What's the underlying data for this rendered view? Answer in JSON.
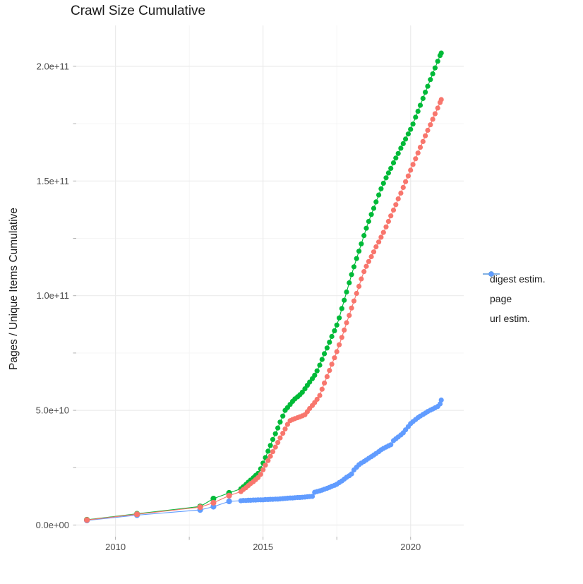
{
  "chart": {
    "title": "Crawl Size Cumulative",
    "y_axis": {
      "label": "Pages / Unique Items Cumulative",
      "tick_labels": [
        "0.0e+00",
        "5.0e+10",
        "1.0e+11",
        "1.5e+11",
        "2.0e+11"
      ],
      "tick_values_billions": [
        0,
        50,
        100,
        150,
        200
      ]
    },
    "x_axis": {
      "tick_labels": [
        "2010",
        "2015",
        "2020"
      ],
      "tick_values": [
        2010,
        2015,
        2020
      ]
    },
    "legend": {
      "items": [
        {
          "label": "digest estim.",
          "color": "#F8766D"
        },
        {
          "label": "page",
          "color": "#00BA38"
        },
        {
          "label": "url estim.",
          "color": "#619CFF"
        }
      ]
    }
  },
  "chart_data": {
    "type": "line",
    "title": "Crawl Size Cumulative",
    "xlabel": "",
    "ylabel": "Pages / Unique Items Cumulative",
    "units": "y values in billions (1e9) of pages / unique items",
    "xlim": [
      2008.67,
      2021.8
    ],
    "ylim_billions": [
      0,
      218.4
    ],
    "x_major_gridlines": [
      2010,
      2015,
      2020
    ],
    "x_minor_gridlines": [
      2012.5,
      2017.5
    ],
    "y_major_gridlines_billions": [
      0,
      50,
      100,
      150,
      200
    ],
    "y_minor_gridlines_billions": [
      25,
      75,
      125,
      175
    ],
    "grid": true,
    "legend_position": "right",
    "series": [
      {
        "name": "url estim.",
        "color": "#619CFF",
        "points": [
          [
            2009.03,
            2.0
          ],
          [
            2010.73,
            4.3
          ],
          [
            2012.87,
            6.6
          ],
          [
            2013.32,
            8.0
          ],
          [
            2013.85,
            10.3
          ],
          [
            2014.25,
            10.6
          ],
          [
            2014.33,
            10.7
          ],
          [
            2014.42,
            10.7
          ],
          [
            2014.5,
            10.8
          ],
          [
            2014.58,
            10.8
          ],
          [
            2014.67,
            10.9
          ],
          [
            2014.75,
            10.9
          ],
          [
            2014.83,
            11.0
          ],
          [
            2014.92,
            11.0
          ],
          [
            2015.0,
            11.0
          ],
          [
            2015.08,
            11.1
          ],
          [
            2015.17,
            11.1
          ],
          [
            2015.25,
            11.2
          ],
          [
            2015.33,
            11.2
          ],
          [
            2015.42,
            11.3
          ],
          [
            2015.5,
            11.3
          ],
          [
            2015.58,
            11.4
          ],
          [
            2015.67,
            11.5
          ],
          [
            2015.75,
            11.6
          ],
          [
            2015.83,
            11.7
          ],
          [
            2015.92,
            11.8
          ],
          [
            2016.0,
            11.8
          ],
          [
            2016.08,
            11.9
          ],
          [
            2016.17,
            12.0
          ],
          [
            2016.25,
            12.0
          ],
          [
            2016.33,
            12.1
          ],
          [
            2016.42,
            12.2
          ],
          [
            2016.5,
            12.3
          ],
          [
            2016.58,
            12.4
          ],
          [
            2016.67,
            12.5
          ],
          [
            2016.75,
            14.3
          ],
          [
            2016.83,
            14.6
          ],
          [
            2016.92,
            14.9
          ],
          [
            2017.0,
            15.2
          ],
          [
            2017.08,
            15.6
          ],
          [
            2017.17,
            16.0
          ],
          [
            2017.25,
            16.4
          ],
          [
            2017.33,
            16.9
          ],
          [
            2017.42,
            17.3
          ],
          [
            2017.5,
            17.8
          ],
          [
            2017.58,
            18.5
          ],
          [
            2017.67,
            19.2
          ],
          [
            2017.75,
            20.0
          ],
          [
            2017.83,
            20.8
          ],
          [
            2017.92,
            21.5
          ],
          [
            2018.0,
            22.3
          ],
          [
            2018.08,
            24.0
          ],
          [
            2018.17,
            25.2
          ],
          [
            2018.25,
            26.3
          ],
          [
            2018.33,
            27.0
          ],
          [
            2018.42,
            27.7
          ],
          [
            2018.5,
            28.4
          ],
          [
            2018.58,
            29.1
          ],
          [
            2018.67,
            29.8
          ],
          [
            2018.75,
            30.5
          ],
          [
            2018.83,
            31.2
          ],
          [
            2018.92,
            32.0
          ],
          [
            2019.0,
            32.8
          ],
          [
            2019.08,
            33.4
          ],
          [
            2019.17,
            34.0
          ],
          [
            2019.25,
            34.5
          ],
          [
            2019.33,
            35.0
          ],
          [
            2019.42,
            36.8
          ],
          [
            2019.5,
            37.6
          ],
          [
            2019.58,
            38.4
          ],
          [
            2019.67,
            39.3
          ],
          [
            2019.75,
            40.2
          ],
          [
            2019.83,
            41.5
          ],
          [
            2019.92,
            42.9
          ],
          [
            2020.0,
            44.2
          ],
          [
            2020.08,
            45.1
          ],
          [
            2020.17,
            46.0
          ],
          [
            2020.25,
            46.8
          ],
          [
            2020.33,
            47.5
          ],
          [
            2020.42,
            48.2
          ],
          [
            2020.5,
            48.8
          ],
          [
            2020.58,
            49.5
          ],
          [
            2020.67,
            50.1
          ],
          [
            2020.75,
            50.6
          ],
          [
            2020.83,
            51.1
          ],
          [
            2020.92,
            51.7
          ],
          [
            2021.0,
            52.8
          ],
          [
            2021.04,
            54.5
          ]
        ]
      },
      {
        "name": "page",
        "color": "#00BA38",
        "points": [
          [
            2009.03,
            2.3
          ],
          [
            2010.73,
            4.9
          ],
          [
            2012.87,
            8.1
          ],
          [
            2013.32,
            11.5
          ],
          [
            2013.85,
            14.0
          ],
          [
            2014.25,
            15.8
          ],
          [
            2014.33,
            16.7
          ],
          [
            2014.42,
            17.7
          ],
          [
            2014.5,
            18.7
          ],
          [
            2014.58,
            19.6
          ],
          [
            2014.67,
            20.6
          ],
          [
            2014.75,
            21.6
          ],
          [
            2014.83,
            22.5
          ],
          [
            2014.92,
            24.5
          ],
          [
            2015.0,
            27.0
          ],
          [
            2015.08,
            29.4
          ],
          [
            2015.17,
            32.2
          ],
          [
            2015.25,
            34.7
          ],
          [
            2015.33,
            37.3
          ],
          [
            2015.42,
            39.8
          ],
          [
            2015.5,
            42.3
          ],
          [
            2015.58,
            44.9
          ],
          [
            2015.67,
            47.5
          ],
          [
            2015.75,
            50.0
          ],
          [
            2015.83,
            51.2
          ],
          [
            2015.92,
            52.6
          ],
          [
            2016.0,
            53.9
          ],
          [
            2016.08,
            55.0
          ],
          [
            2016.17,
            55.9
          ],
          [
            2016.25,
            56.8
          ],
          [
            2016.33,
            57.9
          ],
          [
            2016.42,
            59.4
          ],
          [
            2016.5,
            60.9
          ],
          [
            2016.58,
            62.3
          ],
          [
            2016.67,
            63.8
          ],
          [
            2016.75,
            65.3
          ],
          [
            2016.83,
            67.2
          ],
          [
            2016.92,
            69.7
          ],
          [
            2017.0,
            72.2
          ],
          [
            2017.08,
            74.7
          ],
          [
            2017.17,
            77.2
          ],
          [
            2017.25,
            79.7
          ],
          [
            2017.33,
            82.2
          ],
          [
            2017.42,
            84.7
          ],
          [
            2017.5,
            87.2
          ],
          [
            2017.58,
            90.3
          ],
          [
            2017.67,
            94.4
          ],
          [
            2017.75,
            98.0
          ],
          [
            2017.83,
            101.6
          ],
          [
            2017.92,
            105.6
          ],
          [
            2018.0,
            109.2
          ],
          [
            2018.08,
            112.6
          ],
          [
            2018.17,
            116.2
          ],
          [
            2018.25,
            119.4
          ],
          [
            2018.33,
            122.6
          ],
          [
            2018.42,
            126.2
          ],
          [
            2018.5,
            129.4
          ],
          [
            2018.58,
            132.4
          ],
          [
            2018.67,
            135.4
          ],
          [
            2018.75,
            138.1
          ],
          [
            2018.83,
            140.9
          ],
          [
            2018.92,
            143.9
          ],
          [
            2019.0,
            146.6
          ],
          [
            2019.08,
            149.0
          ],
          [
            2019.17,
            151.4
          ],
          [
            2019.25,
            153.5
          ],
          [
            2019.33,
            155.5
          ],
          [
            2019.42,
            157.9
          ],
          [
            2019.5,
            160.0
          ],
          [
            2019.58,
            162.0
          ],
          [
            2019.67,
            164.3
          ],
          [
            2019.75,
            166.3
          ],
          [
            2019.83,
            168.3
          ],
          [
            2019.92,
            170.5
          ],
          [
            2020.0,
            172.5
          ],
          [
            2020.08,
            174.8
          ],
          [
            2020.17,
            177.8
          ],
          [
            2020.25,
            180.4
          ],
          [
            2020.33,
            183.0
          ],
          [
            2020.42,
            186.0
          ],
          [
            2020.5,
            188.7
          ],
          [
            2020.58,
            191.3
          ],
          [
            2020.67,
            194.2
          ],
          [
            2020.75,
            196.7
          ],
          [
            2020.83,
            199.3
          ],
          [
            2020.92,
            202.2
          ],
          [
            2021.0,
            204.7
          ],
          [
            2021.04,
            205.8
          ]
        ]
      },
      {
        "name": "digest estim.",
        "color": "#F8766D",
        "points": [
          [
            2009.03,
            2.2
          ],
          [
            2010.73,
            4.7
          ],
          [
            2012.87,
            7.8
          ],
          [
            2013.32,
            9.7
          ],
          [
            2013.85,
            12.8
          ],
          [
            2014.25,
            14.6
          ],
          [
            2014.33,
            15.5
          ],
          [
            2014.42,
            16.3
          ],
          [
            2014.5,
            17.2
          ],
          [
            2014.58,
            18.1
          ],
          [
            2014.67,
            18.9
          ],
          [
            2014.75,
            19.8
          ],
          [
            2014.83,
            20.7
          ],
          [
            2014.92,
            22.1
          ],
          [
            2015.0,
            24.1
          ],
          [
            2015.08,
            26.1
          ],
          [
            2015.17,
            28.1
          ],
          [
            2015.25,
            30.0
          ],
          [
            2015.33,
            32.0
          ],
          [
            2015.42,
            34.0
          ],
          [
            2015.5,
            36.0
          ],
          [
            2015.58,
            38.0
          ],
          [
            2015.67,
            40.0
          ],
          [
            2015.75,
            41.9
          ],
          [
            2015.83,
            43.9
          ],
          [
            2015.92,
            45.5
          ],
          [
            2016.0,
            46.0
          ],
          [
            2016.08,
            46.4
          ],
          [
            2016.17,
            46.8
          ],
          [
            2016.25,
            47.2
          ],
          [
            2016.33,
            47.6
          ],
          [
            2016.42,
            48.1
          ],
          [
            2016.5,
            49.4
          ],
          [
            2016.58,
            50.8
          ],
          [
            2016.67,
            52.1
          ],
          [
            2016.75,
            53.4
          ],
          [
            2016.83,
            54.8
          ],
          [
            2016.92,
            56.5
          ],
          [
            2017.0,
            59.2
          ],
          [
            2017.08,
            61.9
          ],
          [
            2017.17,
            64.7
          ],
          [
            2017.25,
            67.4
          ],
          [
            2017.33,
            70.1
          ],
          [
            2017.42,
            72.9
          ],
          [
            2017.5,
            75.6
          ],
          [
            2017.58,
            78.6
          ],
          [
            2017.67,
            81.8
          ],
          [
            2017.75,
            85.0
          ],
          [
            2017.83,
            88.2
          ],
          [
            2017.92,
            91.4
          ],
          [
            2018.0,
            94.6
          ],
          [
            2018.08,
            97.7
          ],
          [
            2018.17,
            101.0
          ],
          [
            2018.25,
            104.1
          ],
          [
            2018.33,
            107.3
          ],
          [
            2018.42,
            110.5
          ],
          [
            2018.5,
            112.8
          ],
          [
            2018.58,
            114.9
          ],
          [
            2018.67,
            117.0
          ],
          [
            2018.75,
            119.1
          ],
          [
            2018.83,
            121.3
          ],
          [
            2018.92,
            123.4
          ],
          [
            2019.0,
            125.5
          ],
          [
            2019.08,
            127.6
          ],
          [
            2019.17,
            130.0
          ],
          [
            2019.25,
            132.4
          ],
          [
            2019.33,
            134.8
          ],
          [
            2019.42,
            137.3
          ],
          [
            2019.5,
            139.7
          ],
          [
            2019.58,
            142.2
          ],
          [
            2019.67,
            144.7
          ],
          [
            2019.75,
            147.2
          ],
          [
            2019.83,
            149.7
          ],
          [
            2019.92,
            152.2
          ],
          [
            2020.0,
            154.7
          ],
          [
            2020.08,
            157.2
          ],
          [
            2020.17,
            159.7
          ],
          [
            2020.25,
            162.2
          ],
          [
            2020.33,
            164.7
          ],
          [
            2020.42,
            167.2
          ],
          [
            2020.5,
            169.7
          ],
          [
            2020.58,
            172.1
          ],
          [
            2020.67,
            174.5
          ],
          [
            2020.75,
            176.9
          ],
          [
            2020.83,
            179.3
          ],
          [
            2020.92,
            181.8
          ],
          [
            2021.0,
            184.2
          ],
          [
            2021.04,
            185.5
          ]
        ]
      }
    ],
    "style": {
      "major_grid_color": "#ebebeb",
      "minor_grid_color": "#f5f5f5",
      "tick_color": "#b0b0b0",
      "point_radius": 3.6,
      "line_width": 1.1
    }
  }
}
